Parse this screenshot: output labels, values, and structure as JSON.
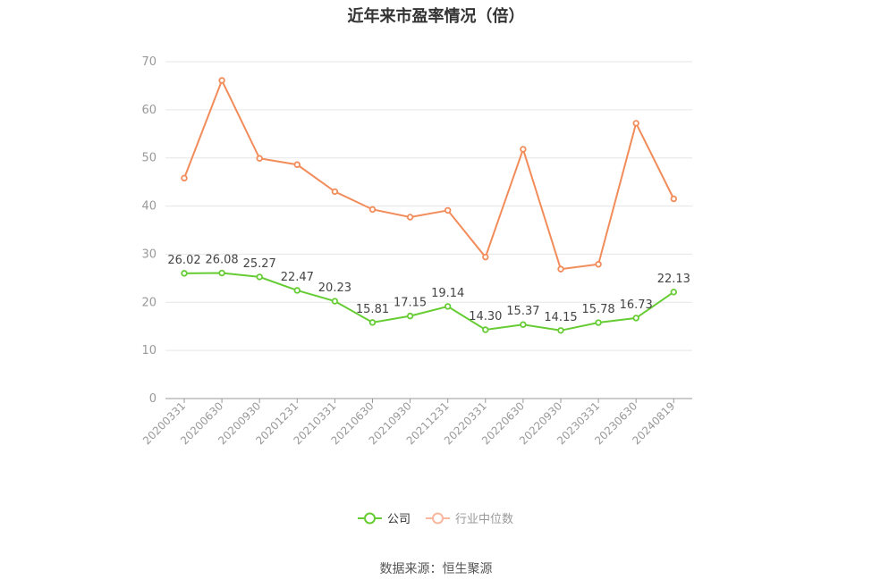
{
  "title": "近年来市盈率情况（倍）",
  "source": "数据来源：恒生聚源",
  "chart_data": {
    "type": "line",
    "title": "近年来市盈率情况（倍）",
    "xlabel": "",
    "ylabel": "",
    "ylim": [
      0,
      70
    ],
    "yticks": [
      0,
      10,
      20,
      30,
      40,
      50,
      60,
      70
    ],
    "grid": true,
    "legend_position": "bottom",
    "categories": [
      "20200331",
      "20200630",
      "20200930",
      "20201231",
      "20210331",
      "20210630",
      "20210930",
      "20211231",
      "20220331",
      "20220630",
      "20220930",
      "20230331",
      "20230630",
      "20240819"
    ],
    "series": [
      {
        "name": "公司",
        "color": "#66cc33",
        "show_labels": true,
        "values": [
          26.02,
          26.08,
          25.27,
          22.47,
          20.23,
          15.81,
          17.15,
          19.14,
          14.3,
          15.37,
          14.15,
          15.78,
          16.73,
          22.13
        ],
        "labels": [
          "26.02",
          "26.08",
          "25.27",
          "22.47",
          "20.23",
          "15.81",
          "17.15",
          "19.14",
          "14.30",
          "15.37",
          "14.15",
          "15.78",
          "16.73",
          "22.13"
        ]
      },
      {
        "name": "行业中位数",
        "color": "#f28c5a",
        "legend_color": "#f8b8a0",
        "show_labels": false,
        "values": [
          45.8,
          66.1,
          49.9,
          48.6,
          43.0,
          39.3,
          37.7,
          39.1,
          29.4,
          51.8,
          26.9,
          27.9,
          57.2,
          41.5
        ]
      }
    ]
  }
}
